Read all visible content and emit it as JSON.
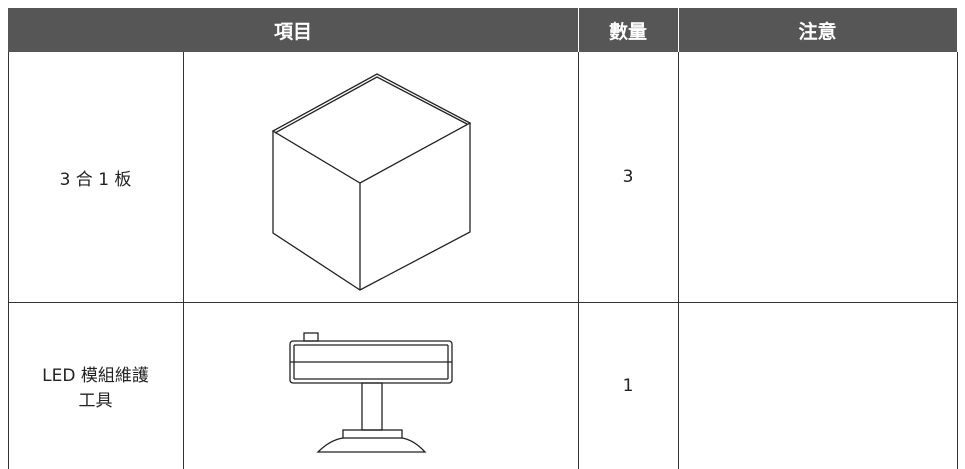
{
  "table": {
    "header": [
      "項目",
      "數量",
      "注意"
    ],
    "rows": [
      [
        "3 合 1 板",
        3
      ],
      [
        "LED 模組維護工具",
        1
      ]
    ]
  }
}
